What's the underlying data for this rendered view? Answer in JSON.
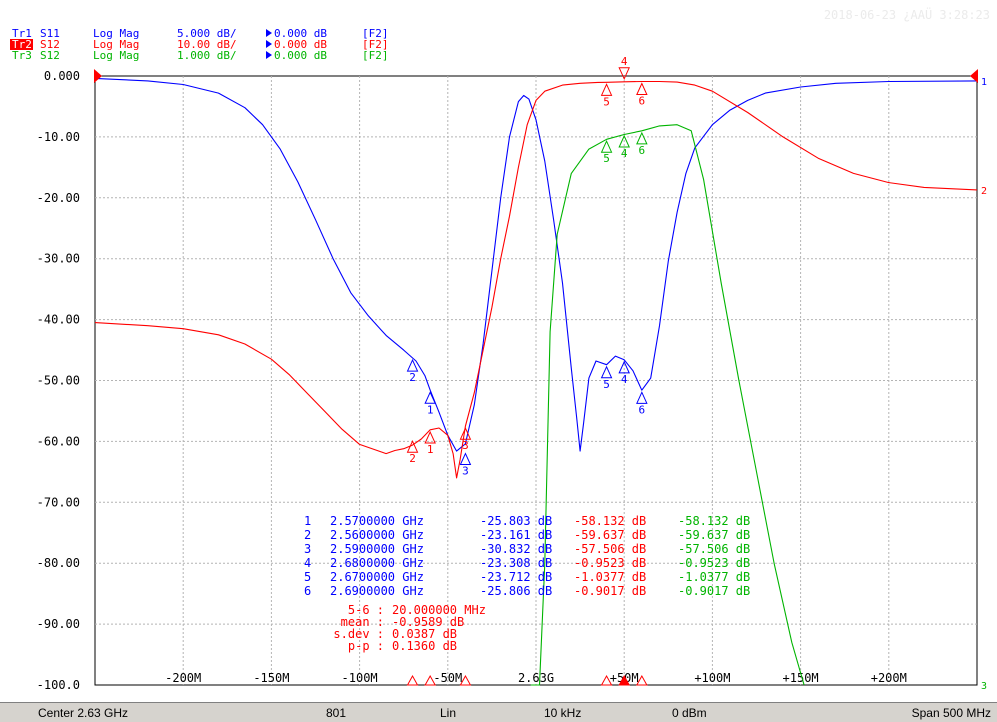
{
  "timestamp": "2018-06-23 ¿ΑΑÜ 3:28:23",
  "traces": [
    {
      "id": "Tr1",
      "param": "S11",
      "format": "Log Mag",
      "scale": "5.000 dB/",
      "ref": "0.000 dB",
      "ch": "[F2]",
      "color": "#0000ff",
      "ref_marker": "1",
      "ref_div": 0,
      "ref_db": 0
    },
    {
      "id": "Tr2",
      "param": "S12",
      "format": "Log Mag",
      "scale": "10.00 dB/",
      "ref": "0.000 dB",
      "ch": "[F2]",
      "color": "#ff0000",
      "ref_marker": "2",
      "ref_div": 0,
      "ref_db": 0
    },
    {
      "id": "Tr3",
      "param": "S12",
      "format": "Log Mag",
      "scale": "1.000 dB/",
      "ref": "0.000 dB",
      "ch": "[F2]",
      "color": "#00b400",
      "ref_marker": "3",
      "ref_div": 0,
      "ref_db": 0
    }
  ],
  "status_bar": {
    "center": "Center 2.63 GHz",
    "points": "801",
    "sweep": "Lin",
    "ifbw": "10 kHz",
    "power": "0 dBm",
    "span": "Span 500 MHz"
  },
  "chart_data": {
    "type": "line",
    "xlabel": "",
    "ylabel": "",
    "x_unit": "MHz offset from center 2.63 GHz",
    "xlim": [
      -250,
      250
    ],
    "x_ticks": [
      {
        "v": -200,
        "label": "-200M"
      },
      {
        "v": -150,
        "label": "-150M"
      },
      {
        "v": -100,
        "label": "-100M"
      },
      {
        "v": -50,
        "label": "-50M"
      },
      {
        "v": 0,
        "label": "2.63G"
      },
      {
        "v": 50,
        "label": "+50M"
      },
      {
        "v": 100,
        "label": "+100M"
      },
      {
        "v": 150,
        "label": "+150M"
      },
      {
        "v": 200,
        "label": "+200M"
      }
    ],
    "ylim": [
      -100,
      0
    ],
    "y_ticks": [
      {
        "v": 0,
        "label": "0.000"
      },
      {
        "v": -10,
        "label": "-10.00"
      },
      {
        "v": -20,
        "label": "-20.00"
      },
      {
        "v": -30,
        "label": "-30.00"
      },
      {
        "v": -40,
        "label": "-40.00"
      },
      {
        "v": -50,
        "label": "-50.00"
      },
      {
        "v": -60,
        "label": "-60.00"
      },
      {
        "v": -70,
        "label": "-70.00"
      },
      {
        "v": -80,
        "label": "-80.00"
      },
      {
        "v": -90,
        "label": "-90.00"
      },
      {
        "v": -100,
        "label": "-100.0"
      }
    ],
    "grid": true,
    "series": [
      {
        "trace": "Tr1",
        "color": "#0000ff",
        "div": 5,
        "points": [
          [
            -250,
            -0.2
          ],
          [
            -220,
            -0.4
          ],
          [
            -200,
            -0.7
          ],
          [
            -180,
            -1.4
          ],
          [
            -165,
            -2.6
          ],
          [
            -155,
            -4.0
          ],
          [
            -145,
            -6.0
          ],
          [
            -135,
            -8.7
          ],
          [
            -125,
            -11.8
          ],
          [
            -115,
            -15.0
          ],
          [
            -105,
            -17.8
          ],
          [
            -95,
            -19.7
          ],
          [
            -85,
            -21.3
          ],
          [
            -75,
            -22.5
          ],
          [
            -68,
            -23.4
          ],
          [
            -63,
            -24.6
          ],
          [
            -60,
            -25.8
          ],
          [
            -55,
            -27.6
          ],
          [
            -50,
            -29.5
          ],
          [
            -45,
            -30.8
          ],
          [
            -40,
            -30.2
          ],
          [
            -35,
            -27.0
          ],
          [
            -30,
            -22.0
          ],
          [
            -25,
            -16.0
          ],
          [
            -20,
            -10.0
          ],
          [
            -15,
            -5.0
          ],
          [
            -10,
            -2.1
          ],
          [
            -7,
            -1.6
          ],
          [
            -4,
            -1.9
          ],
          [
            0,
            -3.6
          ],
          [
            5,
            -7.0
          ],
          [
            10,
            -11.8
          ],
          [
            15,
            -17.0
          ],
          [
            20,
            -24.0
          ],
          [
            23,
            -28.0
          ],
          [
            25,
            -30.8
          ],
          [
            27,
            -28.5
          ],
          [
            30,
            -24.8
          ],
          [
            34,
            -23.4
          ],
          [
            40,
            -23.7
          ],
          [
            45,
            -23.0
          ],
          [
            50,
            -23.3
          ],
          [
            55,
            -24.2
          ],
          [
            60,
            -25.8
          ],
          [
            65,
            -24.8
          ],
          [
            70,
            -20.5
          ],
          [
            75,
            -15.2
          ],
          [
            80,
            -11.2
          ],
          [
            85,
            -8.0
          ],
          [
            90,
            -5.9
          ],
          [
            100,
            -4.0
          ],
          [
            110,
            -2.8
          ],
          [
            120,
            -2.0
          ],
          [
            130,
            -1.4
          ],
          [
            150,
            -0.9
          ],
          [
            170,
            -0.6
          ],
          [
            200,
            -0.45
          ],
          [
            250,
            -0.4
          ]
        ]
      },
      {
        "trace": "Tr2",
        "color": "#ff0000",
        "div": 10,
        "points": [
          [
            -250,
            -40.5
          ],
          [
            -220,
            -41.0
          ],
          [
            -200,
            -41.5
          ],
          [
            -180,
            -42.5
          ],
          [
            -165,
            -44.0
          ],
          [
            -150,
            -46.5
          ],
          [
            -140,
            -49.0
          ],
          [
            -130,
            -52.0
          ],
          [
            -120,
            -55.0
          ],
          [
            -110,
            -58.0
          ],
          [
            -100,
            -60.5
          ],
          [
            -90,
            -61.5
          ],
          [
            -85,
            -62.0
          ],
          [
            -80,
            -61.5
          ],
          [
            -75,
            -61.2
          ],
          [
            -70,
            -60.6
          ],
          [
            -65,
            -59.6
          ],
          [
            -60,
            -58.1
          ],
          [
            -55,
            -57.8
          ],
          [
            -50,
            -59.0
          ],
          [
            -47,
            -62.0
          ],
          [
            -45,
            -66.0
          ],
          [
            -43,
            -63.0
          ],
          [
            -40,
            -57.5
          ],
          [
            -35,
            -52.0
          ],
          [
            -30,
            -45.0
          ],
          [
            -25,
            -38.0
          ],
          [
            -20,
            -30.0
          ],
          [
            -15,
            -23.0
          ],
          [
            -10,
            -15.0
          ],
          [
            -5,
            -8.0
          ],
          [
            0,
            -4.0
          ],
          [
            5,
            -2.5
          ],
          [
            15,
            -1.5
          ],
          [
            25,
            -1.2
          ],
          [
            35,
            -1.05
          ],
          [
            40,
            -1.04
          ],
          [
            50,
            -0.95
          ],
          [
            60,
            -0.9
          ],
          [
            70,
            -0.9
          ],
          [
            80,
            -1.0
          ],
          [
            90,
            -1.5
          ],
          [
            100,
            -2.5
          ],
          [
            120,
            -6.0
          ],
          [
            140,
            -10.0
          ],
          [
            160,
            -13.5
          ],
          [
            180,
            -16.0
          ],
          [
            200,
            -17.5
          ],
          [
            220,
            -18.3
          ],
          [
            250,
            -18.7
          ]
        ]
      },
      {
        "trace": "Tr3",
        "color": "#00b400",
        "div": 1,
        "points": [
          [
            -3,
            -100
          ],
          [
            0,
            -40
          ],
          [
            2,
            -20
          ],
          [
            5,
            -8.0
          ],
          [
            8,
            -4.2
          ],
          [
            12,
            -2.6
          ],
          [
            20,
            -1.6
          ],
          [
            30,
            -1.2
          ],
          [
            40,
            -1.04
          ],
          [
            50,
            -0.96
          ],
          [
            60,
            -0.9
          ],
          [
            70,
            -0.82
          ],
          [
            80,
            -0.8
          ],
          [
            88,
            -0.9
          ],
          [
            95,
            -1.7
          ],
          [
            105,
            -3.4
          ],
          [
            115,
            -5.0
          ],
          [
            125,
            -6.5
          ],
          [
            135,
            -8.0
          ],
          [
            145,
            -9.3
          ],
          [
            152,
            -10.0
          ]
        ]
      }
    ],
    "trace_markers": [
      {
        "trace": "Tr1",
        "labels": [
          "2",
          "1",
          "3",
          "5",
          "4",
          "6"
        ],
        "x": [
          -70,
          -60,
          -40,
          40,
          50,
          60
        ],
        "db": [
          -23.161,
          -25.803,
          -30.832,
          -23.712,
          -23.308,
          -25.806
        ]
      },
      {
        "trace": "Tr2",
        "labels": [
          "2",
          "1",
          "3",
          "5",
          "4",
          "6"
        ],
        "x": [
          -70,
          -60,
          -40,
          40,
          50,
          60
        ],
        "db": [
          -59.637,
          -58.132,
          -57.506,
          -1.0377,
          -0.9523,
          -0.9017
        ]
      },
      {
        "trace": "Tr3",
        "labels": [
          "5",
          "4",
          "6"
        ],
        "x": [
          40,
          50,
          60
        ],
        "db": [
          -1.0377,
          -0.9523,
          -0.9017
        ]
      }
    ],
    "active_marker": {
      "label": "4",
      "x": 50
    },
    "marker_table": [
      {
        "n": "1",
        "freq": "2.5700000 GHz",
        "tr1": "-25.803 dB",
        "tr2": "-58.132 dB",
        "tr3": "-58.132 dB"
      },
      {
        "n": "2",
        "freq": "2.5600000 GHz",
        "tr1": "-23.161 dB",
        "tr2": "-59.637 dB",
        "tr3": "-59.637 dB"
      },
      {
        "n": "3",
        "freq": "2.5900000 GHz",
        "tr1": "-30.832 dB",
        "tr2": "-57.506 dB",
        "tr3": "-57.506 dB"
      },
      {
        "n": "4",
        "freq": "2.6800000 GHz",
        "tr1": "-23.308 dB",
        "tr2": "-0.9523 dB",
        "tr3": "-0.9523 dB"
      },
      {
        "n": "5",
        "freq": "2.6700000 GHz",
        "tr1": "-23.712 dB",
        "tr2": "-1.0377 dB",
        "tr3": "-1.0377 dB"
      },
      {
        "n": "6",
        "freq": "2.6900000 GHz",
        "tr1": "-25.806 dB",
        "tr2": "-0.9017 dB",
        "tr3": "-0.9017 dB"
      }
    ],
    "stats": [
      {
        "label": "5-6 :",
        "value": "20.000000 MHz"
      },
      {
        "label": "mean :",
        "value": "-0.9589 dB"
      },
      {
        "label": "s.dev :",
        "value": "0.0387 dB"
      },
      {
        "label": "p-p :",
        "value": "0.1360 dB"
      }
    ]
  }
}
